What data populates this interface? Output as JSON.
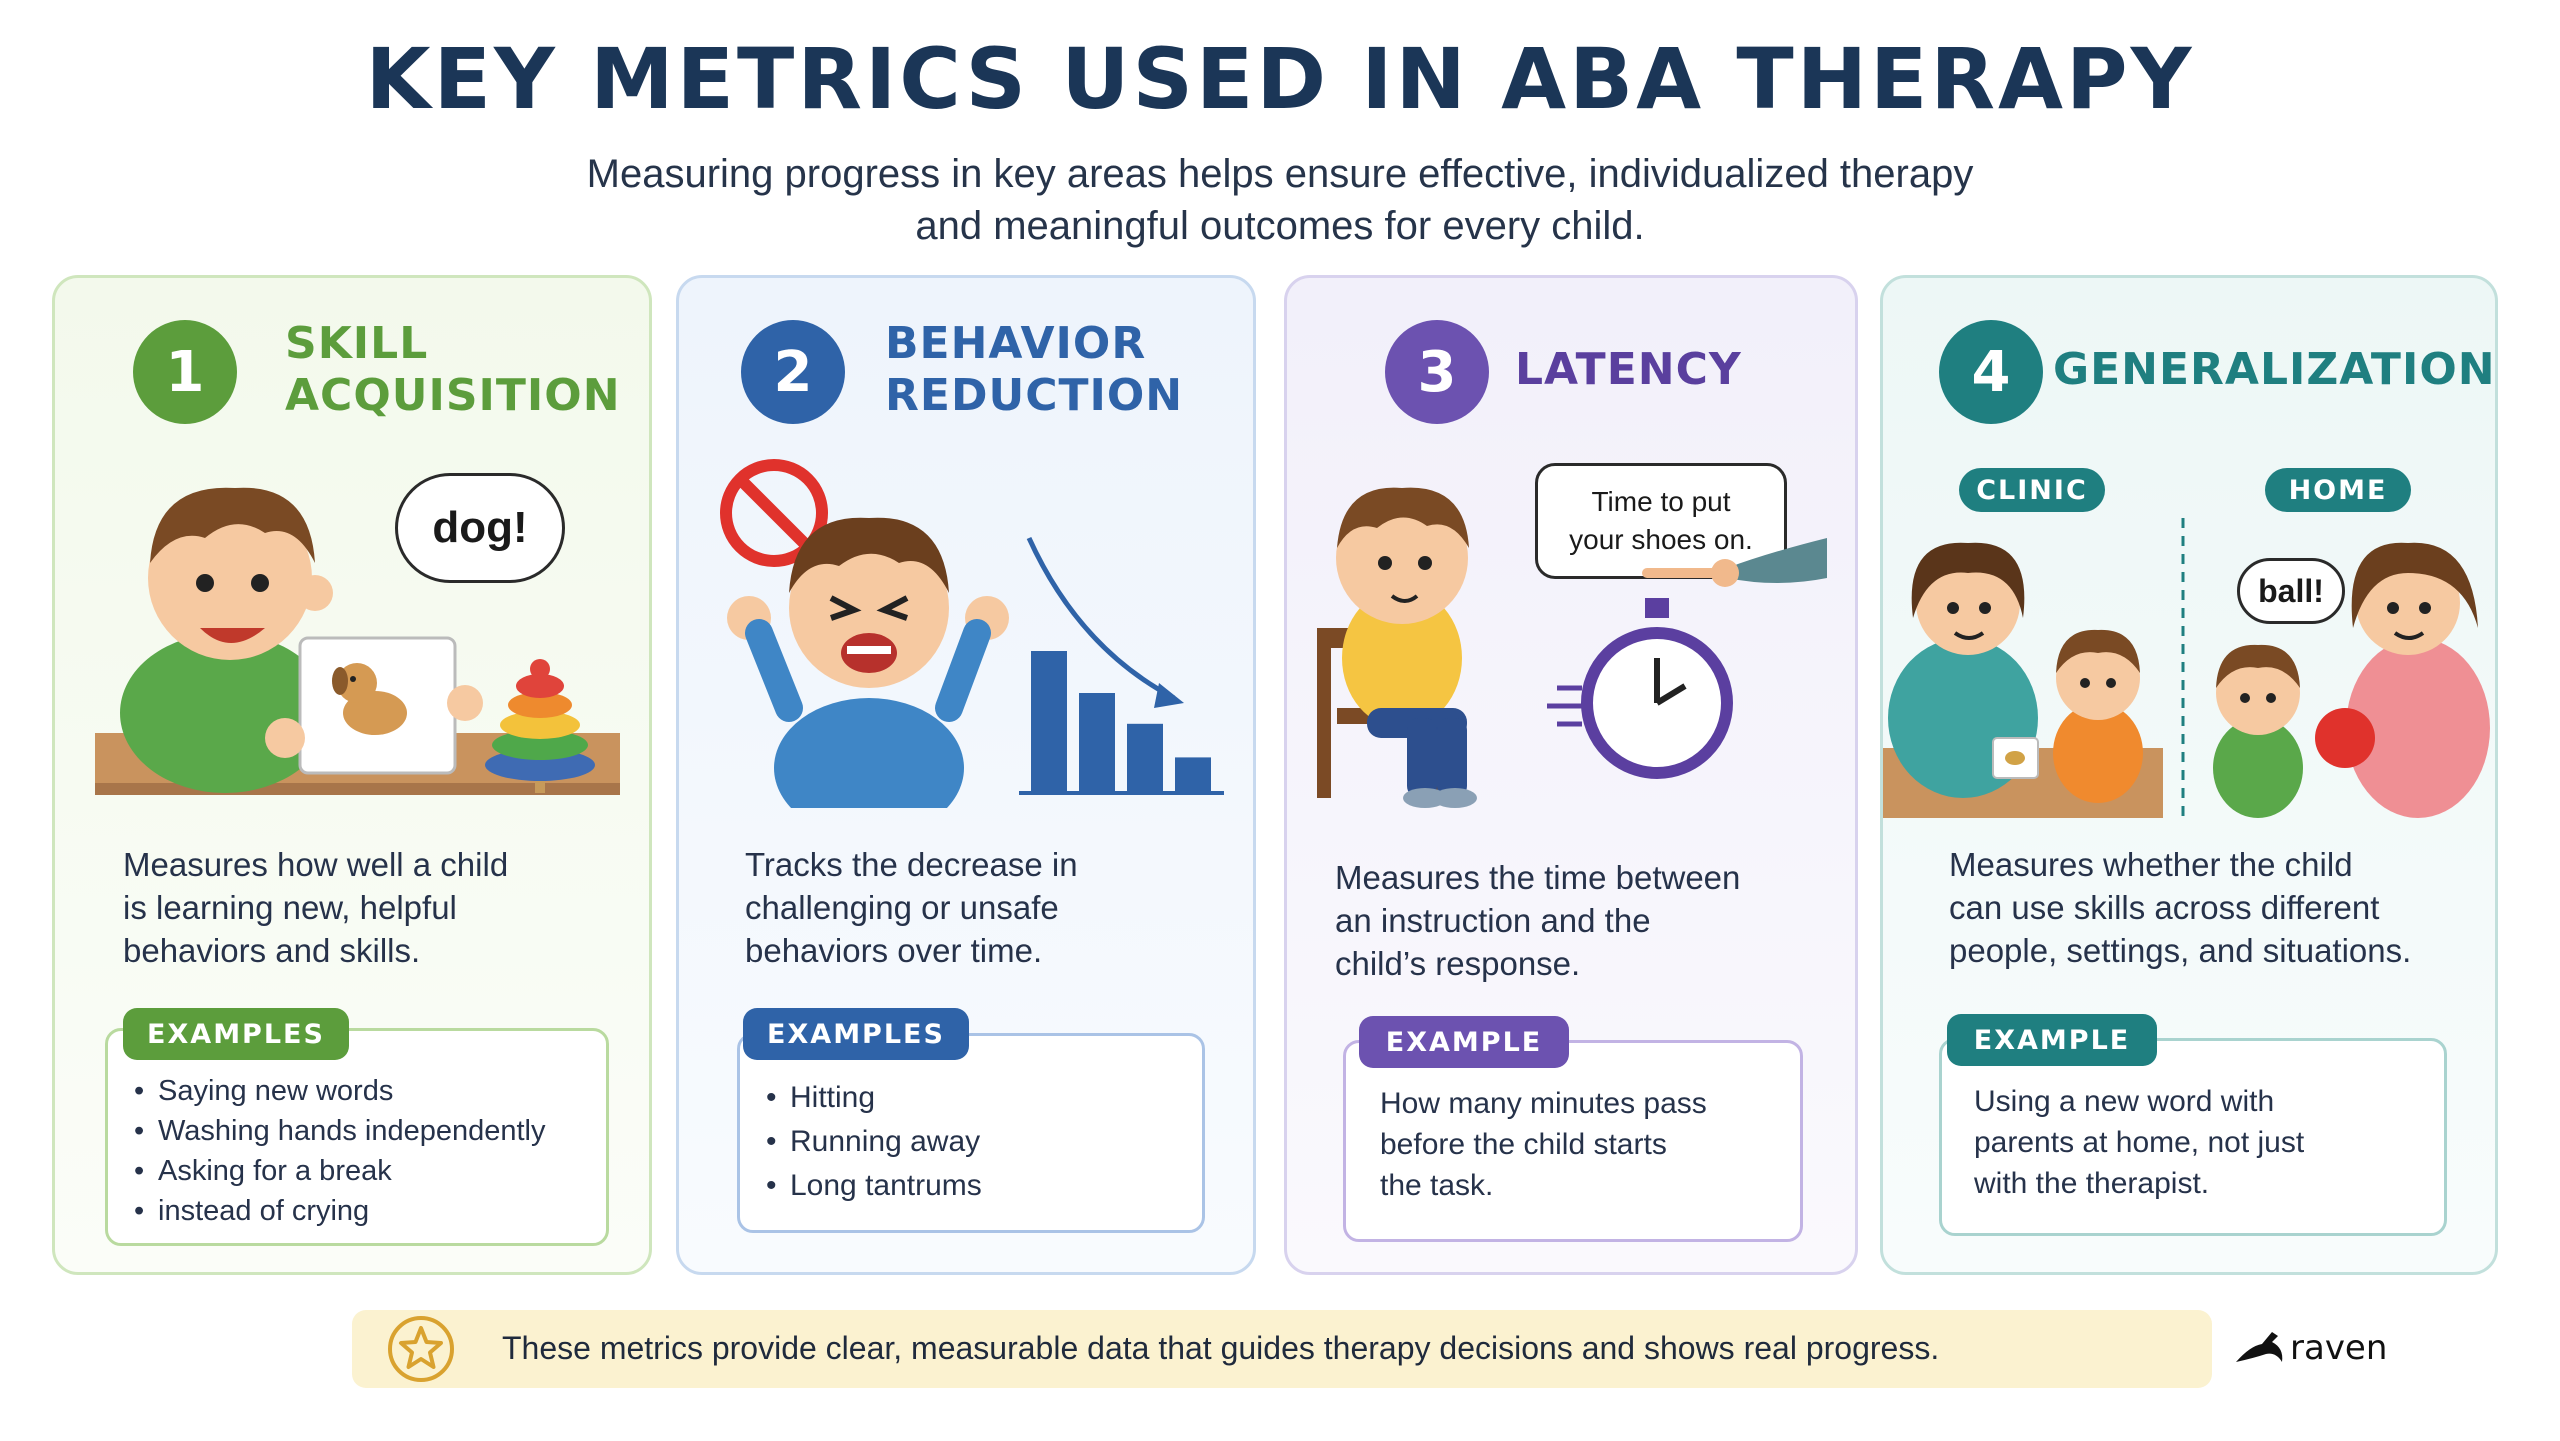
{
  "title": "KEY METRICS USED IN ABA THERAPY",
  "subtitle_line1": "Measuring progress in key areas helps ensure effective, individualized therapy",
  "subtitle_line2": "and meaningful outcomes for every child.",
  "colors": {
    "green": "#5c9d3c",
    "blue": "#2f63a8",
    "purple": "#6c52b0",
    "teal": "#1f7f80",
    "title": "#1b3657"
  },
  "cards": [
    {
      "number": "1",
      "heading_line1": "SKILL",
      "heading_line2": "ACQUISITION",
      "bubble": "dog!",
      "desc_line1": "Measures how well a child",
      "desc_line2": "is learning new, helpful",
      "desc_line3": "behaviors and skills.",
      "example_label": "EXAMPLES",
      "examples": [
        "Saying new words",
        "Washing hands independently",
        "Asking for a break"
      ],
      "example_cont": "instead of crying"
    },
    {
      "number": "2",
      "heading_line1": "BEHAVIOR",
      "heading_line2": "REDUCTION",
      "desc_line1": "Tracks the decrease in",
      "desc_line2": "challenging or unsafe",
      "desc_line3": "behaviors over time.",
      "example_label": "EXAMPLES",
      "examples": [
        "Hitting",
        "Running away",
        "Long tantrums"
      ],
      "chart_data": {
        "type": "bar",
        "values": [
          5,
          3.5,
          2.4,
          1.2
        ]
      }
    },
    {
      "number": "3",
      "heading": "LATENCY",
      "bubble_line1": "Time to put",
      "bubble_line2": "your shoes on.",
      "desc_line1": "Measures the time between",
      "desc_line2": "an instruction and the",
      "desc_line3": "child’s response.",
      "example_label": "EXAMPLE",
      "example_line1": "How many minutes pass",
      "example_line2": "before the child starts",
      "example_line3": "the task."
    },
    {
      "number": "4",
      "heading": "GENERALIZATION",
      "tag_clinic": "CLINIC",
      "tag_home": "HOME",
      "bubble": "ball!",
      "desc_line1": "Measures whether the child",
      "desc_line2": "can use skills across different",
      "desc_line3": "people, settings, and situations.",
      "example_label": "EXAMPLE",
      "example_line1": "Using a new word with",
      "example_line2": "parents at home, not just",
      "example_line3": "with the therapist."
    }
  ],
  "footer": "These metrics provide clear, measurable data that guides therapy decisions and shows real progress.",
  "brand": "raven",
  "icons": {
    "footer": "star-icon",
    "brand": "raven-logo-icon"
  }
}
